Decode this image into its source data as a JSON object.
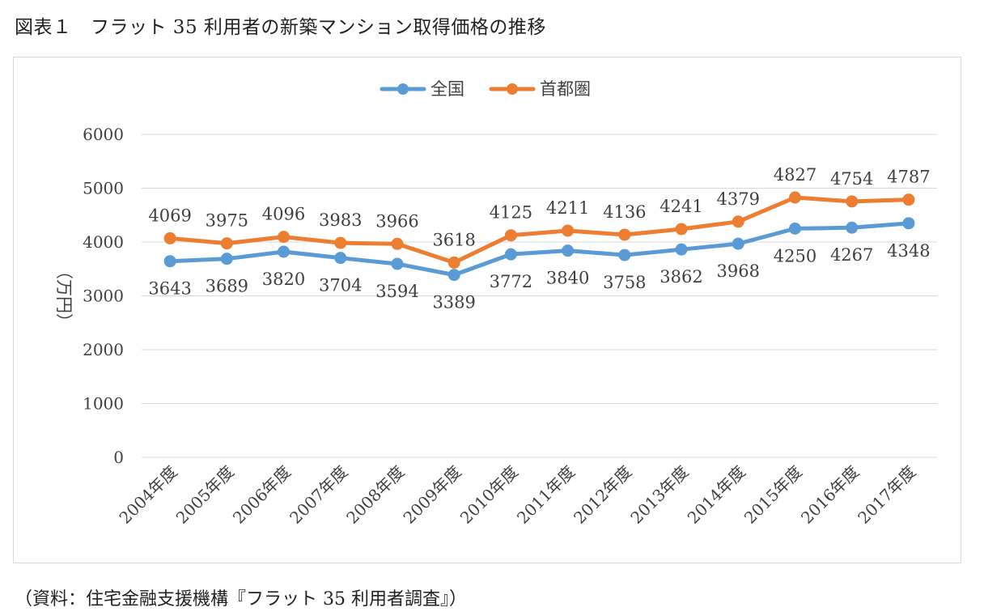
{
  "figure": {
    "title": "図表１　フラット 35 利用者の新築マンション取得価格の推移",
    "source": "（資料：住宅金融支援機構『フラット 35 利用者調査』）"
  },
  "chart_data": {
    "type": "line",
    "title": "",
    "xlabel": "",
    "ylabel": "（万円）",
    "ylim": [
      0,
      6000
    ],
    "yticks": [
      0,
      1000,
      2000,
      3000,
      4000,
      5000,
      6000
    ],
    "grid": true,
    "legend_position": "top-center",
    "categories": [
      "2004年度",
      "2005年度",
      "2006年度",
      "2007年度",
      "2008年度",
      "2009年度",
      "2010年度",
      "2011年度",
      "2012年度",
      "2013年度",
      "2014年度",
      "2015年度",
      "2016年度",
      "2017年度"
    ],
    "series": [
      {
        "name": "全国",
        "color": "#5b9bd5",
        "label_position": "below",
        "values": [
          3643,
          3689,
          3820,
          3704,
          3594,
          3389,
          3772,
          3840,
          3758,
          3862,
          3968,
          4250,
          4267,
          4348
        ]
      },
      {
        "name": "首都圏",
        "color": "#ed7d31",
        "label_position": "above",
        "values": [
          4069,
          3975,
          4096,
          3983,
          3966,
          3618,
          4125,
          4211,
          4136,
          4241,
          4379,
          4827,
          4754,
          4787
        ]
      }
    ]
  }
}
